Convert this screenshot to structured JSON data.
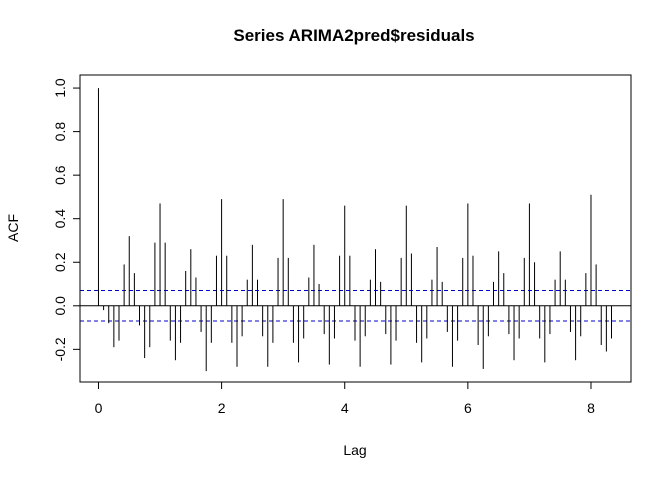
{
  "chart_data": {
    "type": "bar",
    "title": "Series  ARIMA2pred$residuals",
    "xlabel": "Lag",
    "ylabel": "ACF",
    "xlim": [
      -0.3,
      8.65
    ],
    "ylim": [
      -0.35,
      1.06
    ],
    "xticks": [
      0,
      2,
      4,
      6,
      8
    ],
    "yticks": [
      -0.2,
      0.0,
      0.2,
      0.4,
      0.6,
      0.8,
      1.0
    ],
    "xtick_labels": [
      "0",
      "2",
      "4",
      "6",
      "8"
    ],
    "ytick_labels": [
      "-0.2",
      "0.0",
      "0.2",
      "0.4",
      "0.6",
      "0.8",
      "1.0"
    ],
    "confidence_bound": 0.07,
    "colors": {
      "bars": "#000000",
      "ci": "#0000cc",
      "zero": "#000000"
    },
    "x": [
      0.0,
      0.0833,
      0.1667,
      0.25,
      0.3333,
      0.4167,
      0.5,
      0.5833,
      0.6667,
      0.75,
      0.8333,
      0.9167,
      1.0,
      1.0833,
      1.1667,
      1.25,
      1.3333,
      1.4167,
      1.5,
      1.5833,
      1.6667,
      1.75,
      1.8333,
      1.9167,
      2.0,
      2.0833,
      2.1667,
      2.25,
      2.3333,
      2.4167,
      2.5,
      2.5833,
      2.6667,
      2.75,
      2.8333,
      2.9167,
      3.0,
      3.0833,
      3.1667,
      3.25,
      3.3333,
      3.4167,
      3.5,
      3.5833,
      3.6667,
      3.75,
      3.8333,
      3.9167,
      4.0,
      4.0833,
      4.1667,
      4.25,
      4.3333,
      4.4167,
      4.5,
      4.5833,
      4.6667,
      4.75,
      4.8333,
      4.9167,
      5.0,
      5.0833,
      5.1667,
      5.25,
      5.3333,
      5.4167,
      5.5,
      5.5833,
      5.6667,
      5.75,
      5.8333,
      5.9167,
      6.0,
      6.0833,
      6.1667,
      6.25,
      6.3333,
      6.4167,
      6.5,
      6.5833,
      6.6667,
      6.75,
      6.8333,
      6.9167,
      7.0,
      7.0833,
      7.1667,
      7.25,
      7.3333,
      7.4167,
      7.5,
      7.5833,
      7.6667,
      7.75,
      7.8333,
      7.9167,
      8.0,
      8.0833,
      8.1667,
      8.25,
      8.3333
    ],
    "values": [
      1.0,
      -0.02,
      -0.08,
      -0.19,
      -0.16,
      0.19,
      0.32,
      0.15,
      -0.09,
      -0.24,
      -0.19,
      0.29,
      0.47,
      0.29,
      -0.16,
      -0.25,
      -0.17,
      0.16,
      0.26,
      0.13,
      -0.12,
      -0.3,
      -0.17,
      0.23,
      0.49,
      0.23,
      -0.17,
      -0.28,
      -0.14,
      0.12,
      0.28,
      0.12,
      -0.14,
      -0.28,
      -0.17,
      0.22,
      0.49,
      0.22,
      -0.17,
      -0.26,
      -0.15,
      0.13,
      0.28,
      0.1,
      -0.13,
      -0.27,
      -0.15,
      0.23,
      0.46,
      0.23,
      -0.16,
      -0.28,
      -0.14,
      0.12,
      0.26,
      0.11,
      -0.13,
      -0.27,
      -0.16,
      0.22,
      0.46,
      0.24,
      -0.17,
      -0.26,
      -0.15,
      0.12,
      0.27,
      0.11,
      -0.12,
      -0.28,
      -0.16,
      0.22,
      0.47,
      0.23,
      -0.18,
      -0.29,
      -0.14,
      0.11,
      0.25,
      0.15,
      -0.13,
      -0.25,
      -0.15,
      0.22,
      0.47,
      0.2,
      -0.15,
      -0.26,
      -0.13,
      0.12,
      0.25,
      0.12,
      -0.12,
      -0.25,
      -0.14,
      0.15,
      0.51,
      0.19,
      -0.18,
      -0.21,
      -0.15
    ]
  }
}
